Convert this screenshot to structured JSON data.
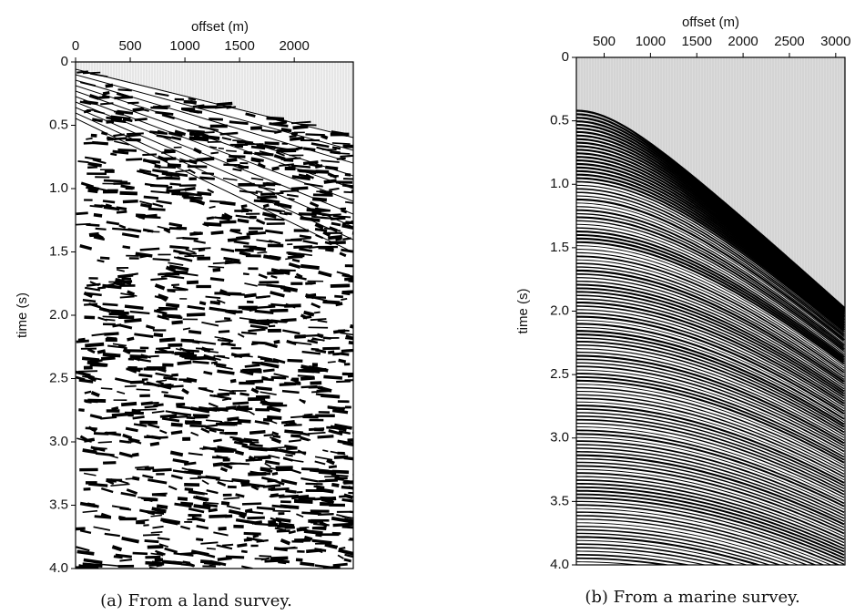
{
  "chart_data": [
    {
      "type": "seismic",
      "xlabel": "offset (m)",
      "ylabel": "time (s)",
      "caption": "(a) From a land survey.",
      "xlim": [
        0,
        2540
      ],
      "xticks": [
        0,
        500,
        1000,
        1500,
        2000
      ],
      "ylim": [
        0,
        4
      ],
      "yticks": [
        0,
        0.5,
        {
          "value": 1,
          "label": "1.0"
        },
        1.5,
        {
          "value": 2,
          "label": "2.0"
        },
        2.5,
        {
          "value": 3,
          "label": "3.0"
        },
        3.5,
        {
          "value": 4,
          "label": "4.0"
        }
      ]
    },
    {
      "type": "seismic",
      "xlabel": "offset (m)",
      "ylabel": "time (s)",
      "caption": "(b) From a marine survey.",
      "xlim": [
        200,
        3100
      ],
      "xticks": [
        500,
        1000,
        1500,
        2000,
        2500,
        3000
      ],
      "ylim": [
        0,
        4
      ],
      "yticks": [
        0,
        0.5,
        {
          "value": 1,
          "label": "1.0"
        },
        1.5,
        {
          "value": 2,
          "label": "2.0"
        },
        2.5,
        {
          "value": 3,
          "label": "3.0"
        },
        3.5,
        {
          "value": 4,
          "label": "4.0"
        }
      ]
    }
  ]
}
